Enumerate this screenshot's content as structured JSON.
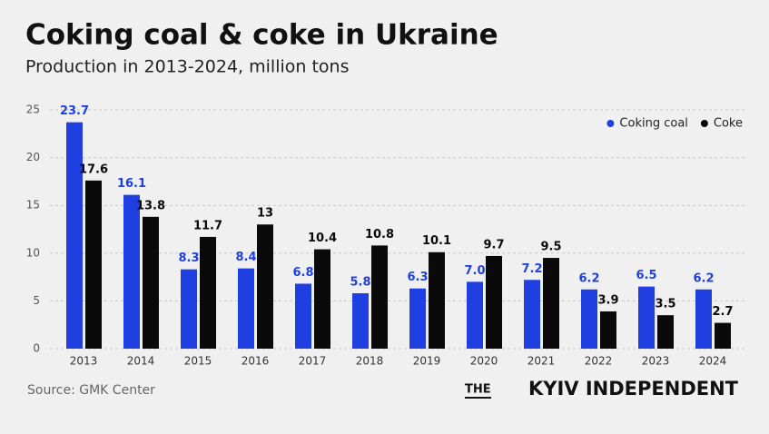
{
  "chart_data": {
    "type": "bar",
    "title": "Coking coal & coke in Ukraine",
    "subtitle": "Production in 2013-2024, million tons",
    "categories": [
      "2013",
      "2014",
      "2015",
      "2016",
      "2017",
      "2018",
      "2019",
      "2020",
      "2021",
      "2022",
      "2023",
      "2024"
    ],
    "series": [
      {
        "name": "Coking coal",
        "color": "#1f3fe0",
        "values": [
          23.7,
          16.1,
          8.3,
          8.4,
          6.8,
          5.8,
          6.3,
          7.0,
          7.2,
          6.2,
          6.5,
          6.2
        ],
        "value_labels": [
          "23.7",
          "16.1",
          "8.3",
          "8.4",
          "6.8",
          "5.8",
          "6.3",
          "7.0",
          "7.2",
          "6.2",
          "6.5",
          "6.2"
        ]
      },
      {
        "name": "Coke",
        "color": "#0a0a0a",
        "values": [
          17.6,
          13.8,
          11.7,
          13,
          10.4,
          10.8,
          10.1,
          9.7,
          9.5,
          3.9,
          3.5,
          2.7
        ]
      }
    ],
    "ylim": [
      0,
      25
    ],
    "yticks": [
      0,
      5,
      10,
      15,
      20,
      25
    ],
    "grid": true,
    "legend": "top-right",
    "source": "Source: GMK Center",
    "logo": {
      "prefix": "THE",
      "name": "KYIV INDEPENDENT"
    }
  }
}
